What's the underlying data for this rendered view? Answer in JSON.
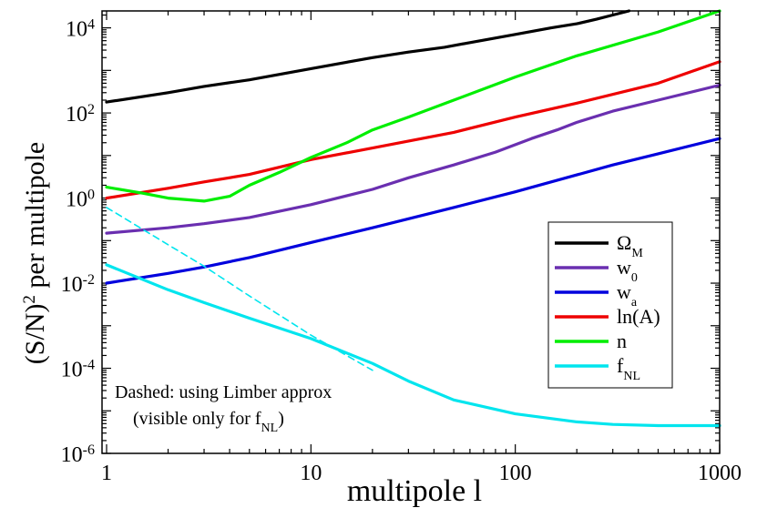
{
  "chart_data": {
    "type": "line",
    "xlabel": "multipole l",
    "ylabel_main": "(S/N)",
    "ylabel_sup": "2",
    "ylabel_tail": " per multipole",
    "xscale": "log",
    "yscale": "log",
    "xlim": [
      0.95,
      1000
    ],
    "ylim": [
      1e-06,
      25000
    ],
    "x_ticks": [
      {
        "value": 1,
        "label": "1"
      },
      {
        "value": 10,
        "label": "10"
      },
      {
        "value": 100,
        "label": "100"
      },
      {
        "value": 1000,
        "label": "1000"
      }
    ],
    "y_ticks": [
      {
        "value": 1e-06,
        "base": "10",
        "exp": "-6"
      },
      {
        "value": 0.0001,
        "base": "10",
        "exp": "-4"
      },
      {
        "value": 0.01,
        "base": "10",
        "exp": "-2"
      },
      {
        "value": 1,
        "base": "10",
        "exp": "0"
      },
      {
        "value": 100,
        "base": "10",
        "exp": "2"
      },
      {
        "value": 10000,
        "base": "10",
        "exp": "4"
      }
    ],
    "legend_position": "right",
    "series": [
      {
        "name": "Ω",
        "sub": "M",
        "color": "#000000",
        "dashed": false,
        "x": [
          1,
          2,
          3,
          5,
          10,
          20,
          30,
          45,
          60,
          100,
          150,
          200,
          250,
          300,
          360
        ],
        "y": [
          180,
          300,
          420,
          600,
          1100,
          2000,
          2700,
          3500,
          4500,
          7000,
          10000,
          12500,
          16000,
          20000,
          25000
        ]
      },
      {
        "name": "w",
        "sub": "0",
        "color": "#6a2fb0",
        "dashed": false,
        "x": [
          1,
          2,
          3,
          5,
          10,
          20,
          30,
          50,
          80,
          120,
          160,
          200,
          300,
          500,
          1000
        ],
        "y": [
          0.15,
          0.2,
          0.25,
          0.35,
          0.7,
          1.6,
          3,
          6,
          12,
          25,
          40,
          60,
          110,
          200,
          450
        ]
      },
      {
        "name": "w",
        "sub": "a",
        "color": "#0000dd",
        "dashed": false,
        "x": [
          1,
          2,
          3,
          5,
          10,
          20,
          50,
          100,
          200,
          300,
          500,
          1000
        ],
        "y": [
          0.01,
          0.017,
          0.024,
          0.04,
          0.09,
          0.2,
          0.6,
          1.4,
          3.5,
          6,
          11,
          25
        ]
      },
      {
        "name": "ln(A)",
        "sub": "",
        "color": "#ee0000",
        "dashed": false,
        "x": [
          1,
          2,
          3,
          5,
          10,
          20,
          50,
          100,
          200,
          500,
          1000
        ],
        "y": [
          1.0,
          1.7,
          2.4,
          3.6,
          8,
          15,
          35,
          80,
          170,
          500,
          1600
        ]
      },
      {
        "name": "n",
        "sub": "",
        "color": "#00ee00",
        "dashed": false,
        "x": [
          1,
          1.5,
          2,
          3,
          4,
          5,
          7,
          10,
          15,
          20,
          30,
          50,
          100,
          200,
          500,
          1000
        ],
        "y": [
          1.8,
          1.3,
          1.0,
          0.85,
          1.1,
          2,
          4,
          9,
          20,
          40,
          80,
          200,
          700,
          2200,
          8000,
          25000
        ]
      },
      {
        "name": "f",
        "sub": "NL",
        "color": "#00e5ee",
        "dashed": false,
        "x": [
          1,
          2,
          3,
          5,
          10,
          20,
          30,
          50,
          100,
          200,
          300,
          500,
          1000
        ],
        "y": [
          0.027,
          0.007,
          0.0035,
          0.0015,
          0.0005,
          0.00013,
          5e-05,
          1.8e-05,
          8.5e-06,
          5.5e-06,
          4.8e-06,
          4.5e-06,
          4.5e-06
        ]
      },
      {
        "name": "",
        "sub": "",
        "color": "#00e5ee",
        "dashed": true,
        "x": [
          1,
          2,
          3,
          5,
          10,
          20
        ],
        "y": [
          0.6,
          0.08,
          0.025,
          0.005,
          0.0006,
          9e-05
        ]
      }
    ],
    "annotation_line1": "Dashed: using Limber approx",
    "annotation_line2_main": "(visible only for f",
    "annotation_line2_sub": "NL",
    "annotation_line2_tail": ")"
  }
}
